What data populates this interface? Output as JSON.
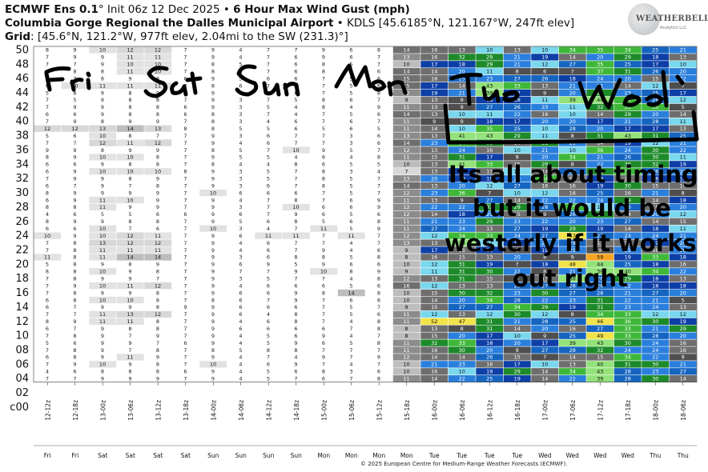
{
  "header": {
    "line1_model": "ECMWF Ens 0.1",
    "line1_deg": "°",
    "line1_init": " Init 06z 12 Dec 2025 • ",
    "line1_product": "6 Hour Max Wind Gust (mph)",
    "line2_station": "Columbia Gorge Regional the Dalles Municipal Airport",
    "line2_rest": " • KDLS [45.6185°N, 121.167°W, 247ft elev]",
    "line3_label": "Grid",
    "line3_rest": ": [45.6°N, 121.2°W, 977ft elev, 2.04mi to the SW (231.3)°]"
  },
  "logo": {
    "text": "WEATHERBELL",
    "sub": "Analytics LLC"
  },
  "footer": "© 2025 European Centre for Medium-Range Weather Forecasts (ECMWF).",
  "annotations": {
    "handwritten_days": [
      "Fri",
      "Sat",
      "Sun",
      "Mon",
      "Tue",
      "Wed"
    ],
    "note_line1": "Its all about timing",
    "note_line2": "but it would be",
    "note_line3": "westerly if it works",
    "note_line4": "out right"
  },
  "colors": {
    "light_gray": "#d8d8d8",
    "mid_gray": "#bdbdbd",
    "dark_gray": "#8c8c8c",
    "blue_dark": "#0d3fa6",
    "blue": "#1565c0",
    "blue_mid": "#2a7fdc",
    "cyan": "#7ad8ee",
    "green_dark": "#1d8a2a",
    "green": "#3fb83a",
    "green_light": "#93e27a",
    "yellow": "#f2e34a",
    "orange": "#f5a623"
  },
  "chart_data": {
    "type": "heatmap",
    "title": "6 Hour Max Wind Gust (mph)",
    "y_labels": [
      "50",
      "48",
      "46",
      "44",
      "42",
      "40",
      "38",
      "36",
      "34",
      "32",
      "30",
      "28",
      "26",
      "24",
      "22",
      "20",
      "18",
      "16",
      "14",
      "12",
      "10",
      "08",
      "06",
      "04",
      "02",
      "c00"
    ],
    "x_labels": [
      "12-12z",
      "12-18z",
      "13-00z",
      "13-06z",
      "13-12z",
      "13-18z",
      "14-00z",
      "14-06z",
      "14-12z",
      "14-18z",
      "15-00z",
      "15-06z",
      "15-12z",
      "15-18z",
      "16-00z",
      "16-06z",
      "16-12z",
      "16-18z",
      "17-00z",
      "17-06z",
      "17-12z",
      "17-18z",
      "18-00z",
      "18-06z"
    ],
    "day_labels": [
      "Fri",
      "Fri",
      "Sat",
      "Sat",
      "Sat",
      "Sat",
      "Sun",
      "Sun",
      "Sun",
      "Sun",
      "Mon",
      "Mon",
      "Mon",
      "Mon",
      "Tue",
      "Tue",
      "Tue",
      "Tue",
      "Wed",
      "Wed",
      "Wed",
      "Wed",
      "Thu",
      "Thu"
    ],
    "values": [
      [
        8,
        9,
        10,
        12,
        12,
        7,
        9,
        4,
        7,
        7,
        9,
        6,
        8,
        14,
        16,
        13,
        10,
        13,
        10,
        34,
        35,
        34,
        25,
        21
      ],
      [
        7,
        9,
        9,
        11,
        11,
        7,
        9,
        4,
        7,
        6,
        9,
        6,
        7,
        13,
        16,
        32,
        29,
        21,
        19,
        14,
        20,
        29,
        18,
        13
      ],
      [
        7,
        7,
        9,
        10,
        10,
        7,
        8,
        5,
        7,
        6,
        8,
        5,
        7,
        10,
        17,
        18,
        29,
        21,
        12,
        27,
        35,
        25,
        17,
        10
      ],
      [
        9,
        8,
        8,
        11,
        10,
        7,
        8,
        6,
        7,
        6,
        8,
        6,
        6,
        14,
        14,
        20,
        11,
        8,
        6,
        7,
        37,
        31,
        26,
        20
      ],
      [
        6,
        7,
        8,
        9,
        8,
        6,
        9,
        5,
        6,
        6,
        7,
        5,
        6,
        15,
        16,
        25,
        23,
        27,
        26,
        18,
        24,
        20,
        15,
        22
      ],
      [
        8,
        10,
        11,
        11,
        11,
        7,
        8,
        6,
        7,
        6,
        7,
        5,
        8,
        15,
        17,
        14,
        43,
        33,
        13,
        21,
        21,
        14,
        12,
        7
      ],
      [
        5,
        8,
        9,
        8,
        9,
        7,
        9,
        4,
        6,
        6,
        7,
        5,
        8,
        12,
        19,
        21,
        39,
        17,
        9,
        20,
        29,
        23,
        25,
        17
      ],
      [
        7,
        5,
        9,
        8,
        8,
        7,
        9,
        3,
        7,
        5,
        8,
        6,
        7,
        9,
        13,
        9,
        19,
        18,
        11,
        39,
        44,
        34,
        26,
        12
      ],
      [
        7,
        9,
        9,
        8,
        8,
        6,
        9,
        3,
        5,
        4,
        8,
        4,
        9,
        11,
        13,
        9,
        27,
        26,
        23,
        11,
        32,
        33,
        35,
        5
      ],
      [
        6,
        6,
        9,
        8,
        8,
        6,
        8,
        3,
        7,
        4,
        7,
        5,
        6,
        14,
        13,
        10,
        11,
        22,
        16,
        10,
        14,
        29,
        20,
        14
      ],
      [
        7,
        9,
        8,
        9,
        9,
        7,
        8,
        3,
        4,
        6,
        7,
        6,
        7,
        11,
        9,
        9,
        18,
        17,
        20,
        20,
        17,
        21,
        28,
        11
      ],
      [
        12,
        12,
        13,
        14,
        13,
        8,
        8,
        5,
        5,
        6,
        5,
        6,
        5,
        11,
        14,
        10,
        35,
        25,
        10,
        28,
        20,
        17,
        17,
        13
      ],
      [
        5,
        6,
        10,
        8,
        7,
        7,
        9,
        3,
        6,
        7,
        7,
        3,
        6,
        13,
        13,
        41,
        43,
        29,
        11,
        8,
        31,
        43,
        31,
        25
      ],
      [
        7,
        7,
        12,
        11,
        12,
        7,
        9,
        4,
        6,
        7,
        7,
        3,
        6,
        14,
        23,
        34,
        32,
        14,
        31,
        21,
        14,
        19,
        12,
        21
      ],
      [
        9,
        9,
        8,
        9,
        9,
        7,
        8,
        5,
        7,
        10,
        9,
        5,
        7,
        12,
        13,
        24,
        16,
        10,
        21,
        10,
        36,
        24,
        30,
        22
      ],
      [
        8,
        9,
        10,
        10,
        8,
        7,
        9,
        5,
        5,
        4,
        6,
        4,
        8,
        11,
        15,
        31,
        17,
        9,
        20,
        34,
        21,
        26,
        30,
        11
      ],
      [
        6,
        6,
        9,
        8,
        8,
        7,
        8,
        4,
        4,
        8,
        6,
        5,
        5,
        10,
        13,
        41,
        33,
        15,
        29,
        8,
        22,
        30,
        32,
        19
      ],
      [
        6,
        9,
        10,
        10,
        10,
        8,
        9,
        3,
        5,
        7,
        8,
        3,
        4,
        7,
        13,
        17,
        13,
        12,
        14,
        26,
        31,
        34,
        26,
        22
      ],
      [
        7,
        9,
        9,
        8,
        9,
        7,
        9,
        3,
        5,
        7,
        8,
        5,
        7,
        13,
        20,
        19,
        19,
        20,
        34,
        13,
        18,
        14,
        18,
        18
      ],
      [
        6,
        7,
        9,
        7,
        8,
        7,
        9,
        3,
        6,
        7,
        8,
        5,
        7,
        14,
        13,
        20,
        12,
        27,
        16,
        16,
        19,
        30,
        15,
        14
      ],
      [
        8,
        9,
        9,
        9,
        9,
        7,
        10,
        6,
        6,
        6,
        7,
        5,
        7,
        12,
        23,
        36,
        7,
        10,
        12,
        16,
        25,
        16,
        21,
        8
      ],
      [
        6,
        9,
        11,
        10,
        9,
        7,
        9,
        4,
        7,
        8,
        7,
        6,
        9,
        11,
        13,
        9,
        27,
        14,
        22,
        22,
        24,
        29,
        14,
        18
      ],
      [
        8,
        8,
        11,
        9,
        9,
        7,
        9,
        3,
        7,
        10,
        6,
        6,
        9,
        12,
        22,
        22,
        32,
        29,
        28,
        35,
        11,
        26,
        16,
        20
      ],
      [
        4,
        6,
        5,
        5,
        6,
        6,
        9,
        6,
        7,
        9,
        6,
        5,
        6,
        12,
        14,
        18,
        20,
        15,
        9,
        26,
        29,
        14,
        20,
        12
      ],
      [
        8,
        9,
        9,
        8,
        8,
        7,
        9,
        5,
        6,
        8,
        5,
        6,
        8,
        11,
        21,
        23,
        29,
        23,
        22,
        20,
        23,
        27,
        14,
        15
      ],
      [
        6,
        6,
        10,
        7,
        6,
        7,
        10,
        3,
        4,
        7,
        11,
        5,
        9,
        11,
        27,
        24,
        13,
        27,
        19,
        29,
        19,
        14,
        18,
        11
      ],
      [
        10,
        9,
        10,
        12,
        11,
        7,
        9,
        6,
        11,
        11,
        7,
        11,
        7,
        12,
        12,
        34,
        33,
        24,
        27,
        47,
        27,
        23,
        24,
        21
      ],
      [
        7,
        8,
        13,
        12,
        12,
        7,
        9,
        4,
        6,
        7,
        7,
        4,
        7,
        13,
        13,
        38,
        11,
        18,
        22,
        28,
        13,
        16,
        19,
        20
      ],
      [
        7,
        8,
        11,
        11,
        11,
        7,
        9,
        4,
        6,
        7,
        9,
        4,
        6,
        9,
        17,
        15,
        18,
        9,
        19,
        21,
        9,
        21,
        16,
        20
      ],
      [
        11,
        8,
        11,
        14,
        14,
        7,
        9,
        3,
        6,
        8,
        8,
        5,
        8,
        8,
        16,
        15,
        13,
        20,
        8,
        9,
        59,
        19,
        33,
        18
      ],
      [
        5,
        8,
        9,
        8,
        9,
        7,
        9,
        6,
        9,
        5,
        9,
        6,
        6,
        10,
        12,
        31,
        19,
        7,
        18,
        48,
        44,
        25,
        18,
        16
      ],
      [
        8,
        8,
        10,
        9,
        8,
        7,
        9,
        7,
        7,
        9,
        10,
        8,
        9,
        9,
        11,
        31,
        30,
        22,
        8,
        21,
        39,
        40,
        34,
        22
      ],
      [
        7,
        8,
        9,
        9,
        7,
        7,
        9,
        3,
        5,
        7,
        7,
        4,
        8,
        12,
        13,
        31,
        15,
        9,
        13,
        38,
        26,
        29,
        18,
        13
      ],
      [
        7,
        9,
        10,
        11,
        12,
        7,
        9,
        4,
        6,
        6,
        6,
        5,
        6,
        16,
        12,
        13,
        13,
        28,
        27,
        28,
        26,
        22,
        18,
        18
      ],
      [
        7,
        8,
        9,
        9,
        8,
        7,
        9,
        6,
        6,
        9,
        8,
        14,
        8,
        10,
        15,
        30,
        32,
        23,
        30,
        27,
        28,
        21,
        27,
        20
      ],
      [
        6,
        8,
        10,
        10,
        8,
        7,
        8,
        6,
        7,
        9,
        7,
        6,
        8,
        10,
        14,
        20,
        34,
        28,
        22,
        23,
        31,
        22,
        21,
        5
      ],
      [
        6,
        7,
        9,
        9,
        8,
        9,
        9,
        6,
        6,
        6,
        7,
        5,
        7,
        9,
        15,
        27,
        27,
        34,
        29,
        19,
        31,
        23,
        24,
        13
      ],
      [
        7,
        7,
        11,
        13,
        12,
        7,
        9,
        6,
        4,
        8,
        7,
        5,
        6,
        11,
        12,
        13,
        12,
        30,
        12,
        8,
        34,
        33,
        12,
        12
      ],
      [
        8,
        9,
        11,
        11,
        8,
        7,
        9,
        4,
        6,
        8,
        7,
        4,
        8,
        11,
        52,
        47,
        31,
        21,
        28,
        25,
        46,
        36,
        30,
        19
      ],
      [
        6,
        7,
        9,
        8,
        8,
        7,
        9,
        6,
        6,
        6,
        6,
        7,
        8,
        8,
        13,
        8,
        31,
        14,
        20,
        16,
        27,
        33,
        21,
        29
      ],
      [
        7,
        8,
        9,
        7,
        9,
        7,
        9,
        4,
        5,
        6,
        9,
        4,
        7,
        8,
        15,
        20,
        17,
        10,
        9,
        25,
        49,
        33,
        28,
        20
      ],
      [
        5,
        6,
        9,
        9,
        7,
        6,
        9,
        4,
        5,
        9,
        6,
        5,
        8,
        11,
        32,
        33,
        18,
        20,
        17,
        39,
        43,
        30,
        24,
        16
      ],
      [
        7,
        8,
        9,
        7,
        8,
        7,
        8,
        5,
        8,
        8,
        7,
        7,
        7,
        11,
        16,
        30,
        20,
        9,
        27,
        28,
        32,
        24,
        24,
        16
      ],
      [
        6,
        8,
        9,
        11,
        9,
        7,
        9,
        4,
        7,
        4,
        9,
        7,
        9,
        12,
        14,
        14,
        26,
        15,
        7,
        14,
        15,
        34,
        22,
        9
      ],
      [
        7,
        9,
        10,
        9,
        8,
        7,
        10,
        4,
        6,
        9,
        7,
        4,
        7,
        10,
        21,
        23,
        16,
        17,
        10,
        13,
        40,
        31,
        30,
        21
      ],
      [
        4,
        6,
        8,
        8,
        8,
        6,
        9,
        4,
        5,
        6,
        8,
        3,
        6,
        10,
        16,
        10,
        19,
        29,
        14,
        34,
        43,
        28,
        23,
        27
      ],
      [
        7,
        7,
        9,
        9,
        9,
        7,
        9,
        4,
        5,
        7,
        6,
        7,
        8,
        11,
        14,
        22,
        25,
        19,
        14,
        22,
        39,
        28,
        30,
        14
      ]
    ]
  }
}
